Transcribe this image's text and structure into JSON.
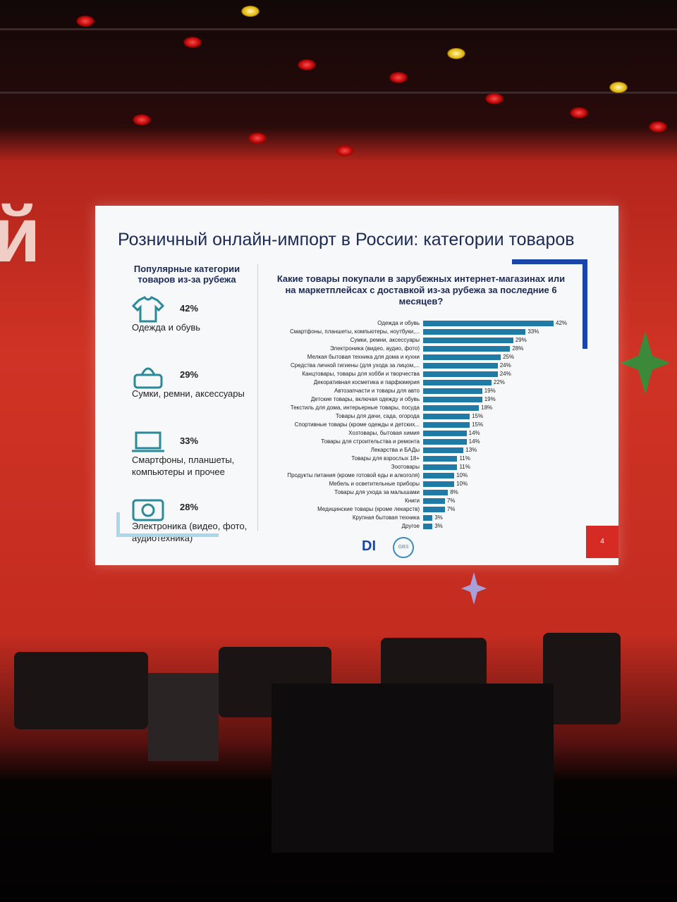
{
  "slide": {
    "title": "Розничный онлайн-импорт в России: категории товаров",
    "left_panel": {
      "heading": "Популярные категории товаров из-за рубежа",
      "items": [
        {
          "value": "42%",
          "label": "Одежда и обувь"
        },
        {
          "value": "29%",
          "label": "Сумки, ремни, аксессуары"
        },
        {
          "value": "33%",
          "label": "Смартфоны, планшеты, компьютеры и прочее"
        },
        {
          "value": "28%",
          "label": "Электроника (видео, фото, аудиотехника)"
        }
      ]
    },
    "logos": [
      "DI",
      "GBS"
    ],
    "page_number": "4"
  },
  "chart_data": {
    "type": "bar",
    "orientation": "horizontal",
    "title": "Какие товары покупали в зарубежных интернет-магазинах или на маркетплейсах с доставкой из-за рубежа за последние 6 месяцев?",
    "categories": [
      "Одежда и обувь",
      "Смартфоны, планшеты, компьютеры, ноутбуки,...",
      "Сумки, ремни, аксессуары",
      "Электроника (видео, аудио, фото)",
      "Мелкая бытовая техника для дома и кухни",
      "Средства личной гигиены (для ухода за лицом,...",
      "Канцтовары, товары для хобби и творчества",
      "Декоративная косметика и парфюмерия",
      "Автозапчасти и товары для авто",
      "Детские товары, включая одежду и обувь",
      "Текстиль для дома, интерьерные товары, посуда",
      "Товары для дачи, сада, огорода",
      "Спортивные товары (кроме одежды и детских...",
      "Хозтовары, бытовая химия",
      "Товары для строительства и ремонта",
      "Лекарства и БАДы",
      "Товары для взрослых 18+",
      "Зоотовары",
      "Продукты питания (кроме готовой еды и алкоголя)",
      "Мебель и осветительные приборы",
      "Товары для ухода за малышами",
      "Книги",
      "Медицинские товары (кроме лекарств)",
      "Крупная бытовая техника",
      "Другое"
    ],
    "values": [
      42,
      33,
      29,
      28,
      25,
      24,
      24,
      22,
      19,
      19,
      18,
      15,
      15,
      14,
      14,
      13,
      11,
      11,
      10,
      10,
      8,
      7,
      7,
      3,
      3
    ],
    "value_labels": [
      "42%",
      "33%",
      "29%",
      "28%",
      "25%",
      "24%",
      "24%",
      "22%",
      "19%",
      "19%",
      "18%",
      "15%",
      "15%",
      "14%",
      "14%",
      "13%",
      "11%",
      "11%",
      "10%",
      "10%",
      "8%",
      "7%",
      "7%",
      "3%",
      "3%"
    ],
    "color": "#1f7aa6"
  }
}
